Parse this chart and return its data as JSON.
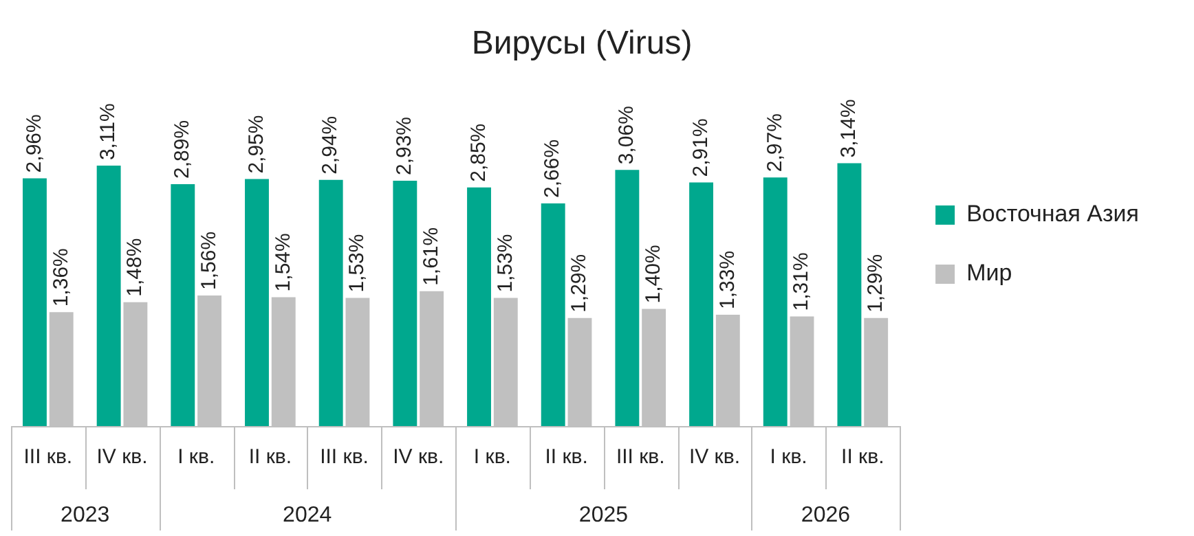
{
  "chart_data": {
    "type": "bar",
    "title": "Вирусы (Virus)",
    "categories": [
      "III кв.",
      "IV кв.",
      "I кв.",
      "II кв.",
      "III кв.",
      "IV кв.",
      "I кв.",
      "II кв.",
      "III кв.",
      "IV кв.",
      "I кв.",
      "II кв."
    ],
    "series": [
      {
        "name": "Восточная Азия",
        "color": "#00a88e",
        "values": [
          2.96,
          3.11,
          2.89,
          2.95,
          2.94,
          2.93,
          2.85,
          2.66,
          3.06,
          2.91,
          2.97,
          3.14
        ],
        "value_labels": [
          "2,96%",
          "3,11%",
          "2,89%",
          "2,95%",
          "2,94%",
          "2,93%",
          "2,85%",
          "2,66%",
          "3,06%",
          "2,91%",
          "2,97%",
          "3,14%"
        ]
      },
      {
        "name": "Мир",
        "color": "#c0c0c0",
        "values": [
          1.36,
          1.48,
          1.56,
          1.54,
          1.53,
          1.61,
          1.53,
          1.29,
          1.4,
          1.33,
          1.31,
          1.29
        ],
        "value_labels": [
          "1,36%",
          "1,48%",
          "1,56%",
          "1,54%",
          "1,53%",
          "1,61%",
          "1,53%",
          "1,29%",
          "1,40%",
          "1,33%",
          "1,31%",
          "1,29%"
        ]
      }
    ],
    "annotations": [
      "2023",
      "2024",
      "2025",
      "2026"
    ],
    "grid": false,
    "legend": "right"
  }
}
